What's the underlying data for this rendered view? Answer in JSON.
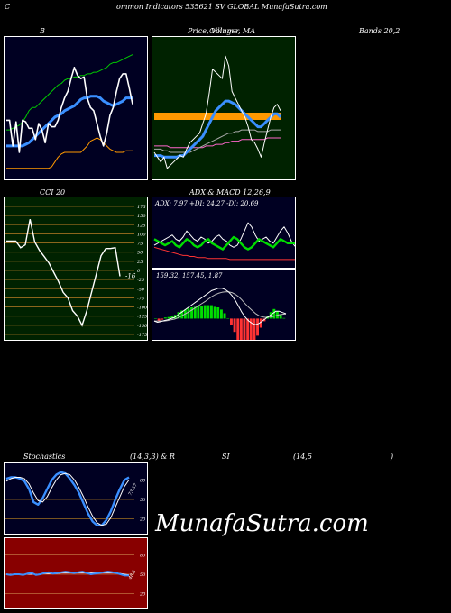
{
  "header": {
    "c": "C",
    "title": "ommon  Indicators 535621 SV GLOBAL  MunafaSutra.com"
  },
  "labels": {
    "bb_left": "B",
    "bb_mid": "Price, Volume, MA",
    "bb_mid_overlay": "Ollinger",
    "bb_right": "Bands 20,2",
    "cci": "CCI 20",
    "adx_macd": "ADX  & MACD 12,26,9",
    "stoch_left": "Stochastics",
    "stoch_mid": "(14,3,3) & R",
    "rsi_mid": "SI",
    "rsi_right": "(14,5",
    "rsi_close": ")"
  },
  "brand": "MunafaSutra.com",
  "colors": {
    "bb_bg": "#000022",
    "price_bg": "#002200",
    "cci_bg": "#002200",
    "adx_bg": "#000022",
    "stoch_bg": "#000022",
    "rsi_bg": "#880000",
    "grid_cci": "#a07020",
    "close": "#ffffff",
    "mid_band": "#3a8fff",
    "upper_band": "#00cc00",
    "lower_band": "#ff9900",
    "adx": "#ff3333",
    "di_plus": "#00dd00",
    "di_minus": "#ffffff",
    "macd_hist": "#00dd00",
    "stoch_k": "#3a8fff",
    "stoch_d": "#ffffff"
  },
  "chart_data": [
    {
      "type": "line",
      "panel": "bollinger",
      "series": [
        {
          "key": "upper",
          "values": [
            72,
            72,
            73,
            74,
            75,
            77,
            80,
            84,
            86,
            86,
            88,
            90,
            92,
            94,
            96,
            98,
            100,
            101,
            103,
            104,
            104,
            105,
            105,
            106,
            106,
            107,
            107,
            108,
            108,
            109,
            110,
            111,
            113,
            114,
            114,
            115,
            116,
            117,
            118,
            119
          ]
        },
        {
          "key": "middle",
          "values": [
            62,
            62,
            62,
            62,
            62,
            62,
            63,
            64,
            66,
            68,
            70,
            72,
            74,
            76,
            78,
            80,
            81,
            82,
            84,
            85,
            86,
            87,
            89,
            91,
            92,
            92,
            93,
            93,
            93,
            92,
            90,
            89,
            88,
            87,
            88,
            89,
            90,
            92,
            92,
            92
          ]
        },
        {
          "key": "lower",
          "values": [
            48,
            48,
            48,
            48,
            48,
            48,
            48,
            48,
            48,
            48,
            48,
            48,
            48,
            48,
            49,
            52,
            55,
            57,
            58,
            58,
            58,
            58,
            58,
            58,
            60,
            62,
            65,
            66,
            67,
            66,
            64,
            62,
            60,
            59,
            58,
            58,
            58,
            59,
            59,
            59
          ]
        },
        {
          "key": "close",
          "values": [
            78,
            78,
            62,
            77,
            58,
            78,
            77,
            73,
            73,
            66,
            76,
            72,
            64,
            76,
            74,
            74,
            78,
            86,
            92,
            96,
            104,
            111,
            106,
            104,
            105,
            92,
            86,
            84,
            76,
            68,
            62,
            70,
            81,
            86,
            96,
            104,
            107,
            107,
            98,
            88
          ]
        }
      ],
      "ylim": [
        40,
        130
      ]
    },
    {
      "type": "line",
      "panel": "price_volume_ma",
      "series": [
        {
          "key": "close",
          "values": [
            58,
            55,
            52,
            55,
            48,
            50,
            52,
            54,
            56,
            55,
            60,
            64,
            66,
            68,
            70,
            76,
            82,
            95,
            110,
            108,
            106,
            104,
            118,
            112,
            96,
            92,
            88,
            84,
            80,
            74,
            66,
            64,
            60,
            55,
            64,
            72,
            80,
            86,
            88,
            84
          ]
        },
        {
          "key": "ma_fast",
          "values": [
            56,
            56,
            56,
            55,
            55,
            55,
            55,
            55,
            56,
            56,
            58,
            60,
            62,
            64,
            66,
            68,
            72,
            76,
            80,
            84,
            86,
            88,
            90,
            90,
            89,
            88,
            86,
            84,
            82,
            80,
            78,
            76,
            74,
            74,
            76,
            78,
            80,
            82,
            82,
            80
          ]
        },
        {
          "key": "ma_mid",
          "values": [
            60,
            60,
            60,
            59,
            59,
            58,
            58,
            58,
            58,
            58,
            58,
            58,
            59,
            60,
            61,
            62,
            63,
            64,
            65,
            66,
            67,
            68,
            69,
            70,
            70,
            71,
            71,
            72,
            72,
            72,
            72,
            72,
            71,
            71,
            71,
            71,
            72,
            72,
            72,
            72
          ]
        },
        {
          "key": "ma_slow",
          "values": [
            62,
            62,
            62,
            62,
            62,
            61,
            61,
            61,
            61,
            61,
            61,
            61,
            61,
            61,
            61,
            61,
            62,
            62,
            62,
            63,
            63,
            63,
            64,
            64,
            65,
            65,
            65,
            66,
            66,
            66,
            66,
            66,
            66,
            66,
            66,
            67,
            67,
            67,
            67,
            67
          ]
        }
      ],
      "ylim": [
        40,
        130
      ]
    },
    {
      "type": "line",
      "panel": "cci",
      "title": "CCI 20",
      "yticks": [
        175,
        150,
        125,
        100,
        75,
        50,
        25,
        0,
        -25,
        -50,
        -75,
        -100,
        -125,
        -150,
        -175
      ],
      "last_label": "-16",
      "values": [
        80,
        80,
        80,
        62,
        70,
        140,
        78,
        55,
        38,
        20,
        -5,
        -30,
        -60,
        -75,
        -110,
        -125,
        -150,
        -110,
        -60,
        -10,
        40,
        60,
        60,
        62,
        -16
      ],
      "ylim": [
        -190,
        190
      ]
    },
    {
      "type": "line",
      "panel": "adx",
      "readout": "ADX: 7.97  +DI: 24.27  -DI: 20.69",
      "series": [
        {
          "key": "adx",
          "values": [
            20,
            19,
            18,
            17,
            16,
            15,
            14,
            13,
            12,
            12,
            11,
            11,
            10,
            10,
            10,
            9,
            9,
            9,
            9,
            9,
            9,
            8,
            8,
            8,
            8,
            8,
            8,
            8,
            8,
            8,
            8,
            8,
            8,
            8,
            8,
            8,
            8,
            8,
            8,
            8
          ]
        },
        {
          "key": "plus_di",
          "values": [
            28,
            26,
            24,
            22,
            24,
            26,
            22,
            20,
            24,
            28,
            26,
            22,
            20,
            22,
            26,
            28,
            24,
            22,
            20,
            18,
            22,
            26,
            30,
            28,
            24,
            20,
            18,
            20,
            24,
            28,
            26,
            24,
            22,
            20,
            24,
            28,
            26,
            24,
            24,
            24
          ]
        },
        {
          "key": "minus_di",
          "values": [
            22,
            24,
            26,
            28,
            30,
            32,
            28,
            26,
            30,
            36,
            32,
            28,
            26,
            30,
            28,
            24,
            26,
            30,
            32,
            28,
            26,
            22,
            20,
            22,
            28,
            36,
            44,
            40,
            32,
            26,
            28,
            30,
            26,
            24,
            30,
            36,
            40,
            34,
            26,
            21
          ]
        }
      ],
      "ylim": [
        0,
        60
      ]
    },
    {
      "type": "line",
      "panel": "macd",
      "readout": "159.32,  157.45,  1.87",
      "series": [
        {
          "key": "macd",
          "values": [
            -1,
            -1.5,
            -1.2,
            -0.8,
            -0.5,
            0,
            0.5,
            1.5,
            2.5,
            3.5,
            4.5,
            5.5,
            6.5,
            7.5,
            8.5,
            9.5,
            10.5,
            11.5,
            12,
            12.5,
            12.5,
            12,
            11,
            9.5,
            7.5,
            5,
            2.5,
            0.5,
            -1,
            -2,
            -2.5,
            -2,
            -1,
            0,
            1,
            2,
            3,
            3,
            2.5,
            2
          ]
        },
        {
          "key": "signal",
          "values": [
            -1,
            -1,
            -1,
            -1,
            -0.8,
            -0.5,
            -0.2,
            0.3,
            1,
            1.8,
            2.6,
            3.4,
            4.3,
            5.2,
            6.1,
            7,
            8,
            9,
            9.8,
            10.4,
            10.8,
            11,
            11,
            10.7,
            10,
            9,
            7.6,
            6,
            4.6,
            3.3,
            2.1,
            1.2,
            0.7,
            0.5,
            0.6,
            0.8,
            1.2,
            1.6,
            1.8,
            1.9
          ]
        },
        {
          "key": "histogram",
          "values": [
            0,
            -0.5,
            -0.2,
            0.2,
            0.3,
            0.5,
            0.7,
            1.2,
            1.5,
            1.7,
            1.9,
            2.1,
            2.2,
            2.3,
            2.4,
            2.5,
            2.5,
            2.5,
            2.2,
            2.1,
            1.7,
            1,
            0,
            -1.2,
            -2.5,
            -4,
            -5.1,
            -5.5,
            -5.6,
            -5.3,
            -4.6,
            -3.2,
            -1.7,
            -0.5,
            0.4,
            1.2,
            1.8,
            1.4,
            0.7,
            0.1
          ]
        }
      ],
      "ylim": [
        -8,
        15
      ]
    },
    {
      "type": "line",
      "panel": "stochastics",
      "yticks": [
        80,
        50,
        20
      ],
      "last_label": "73.67",
      "series": [
        {
          "key": "k",
          "values": [
            82,
            84,
            84,
            82,
            78,
            66,
            46,
            42,
            52,
            66,
            80,
            88,
            92,
            90,
            82,
            72,
            60,
            44,
            28,
            16,
            10,
            10,
            18,
            32,
            50,
            66,
            80,
            84
          ]
        },
        {
          "key": "d",
          "values": [
            78,
            82,
            84,
            84,
            82,
            74,
            60,
            48,
            46,
            54,
            68,
            80,
            88,
            90,
            88,
            80,
            68,
            54,
            38,
            24,
            14,
            10,
            12,
            22,
            38,
            54,
            70,
            80
          ]
        }
      ],
      "ylim": [
        0,
        100
      ]
    },
    {
      "type": "line",
      "panel": "rsi",
      "yticks": [
        80,
        50,
        20
      ],
      "last_label": "48.6",
      "series": [
        {
          "key": "rsi",
          "values": [
            50,
            49,
            50,
            50,
            49,
            51,
            52,
            49,
            50,
            52,
            53,
            51,
            52,
            53,
            54,
            53,
            52,
            53,
            54,
            52,
            50,
            51,
            52,
            53,
            54,
            53,
            52,
            50,
            48,
            48
          ]
        },
        {
          "key": "rsi_ma",
          "values": [
            50,
            50,
            50,
            50,
            50,
            50,
            50,
            50,
            50,
            51,
            51,
            51,
            51,
            52,
            52,
            52,
            52,
            52,
            52,
            52,
            52,
            52,
            52,
            52,
            52,
            52,
            52,
            51,
            50,
            49
          ]
        }
      ],
      "ylim": [
        0,
        100
      ]
    }
  ]
}
